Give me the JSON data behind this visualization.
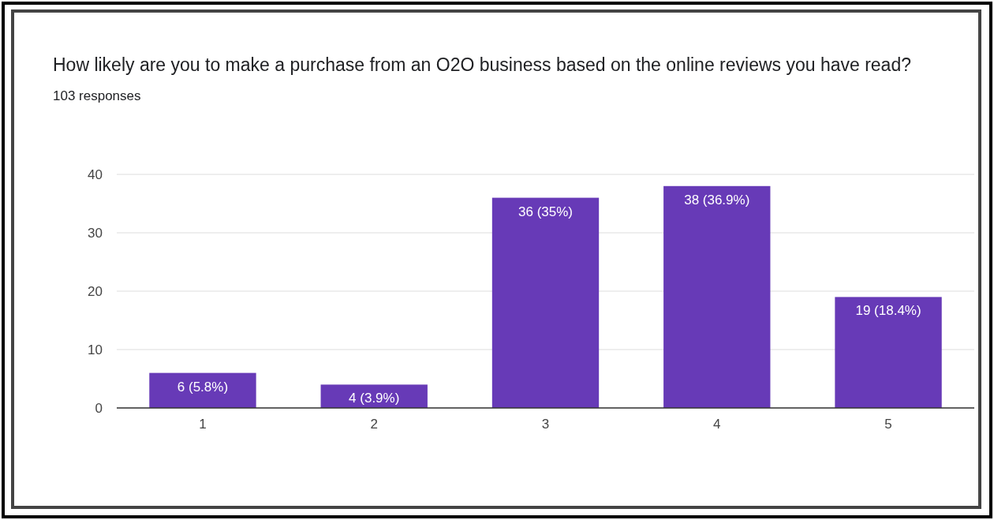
{
  "chart_data": {
    "type": "bar",
    "title": "How likely are you to make a purchase from an O2O business based on the online reviews you have read?",
    "subtitle": "103 responses",
    "categories": [
      "1",
      "2",
      "3",
      "4",
      "5"
    ],
    "values": [
      6,
      4,
      36,
      38,
      19
    ],
    "value_labels": [
      "6 (5.8%)",
      "4 (3.9%)",
      "36 (35%)",
      "38 (36.9%)",
      "19 (18.4%)"
    ],
    "color": "#673ab7",
    "ylim": [
      0,
      40
    ],
    "yticks": [
      0,
      10,
      20,
      30,
      40
    ],
    "grid": "y"
  }
}
